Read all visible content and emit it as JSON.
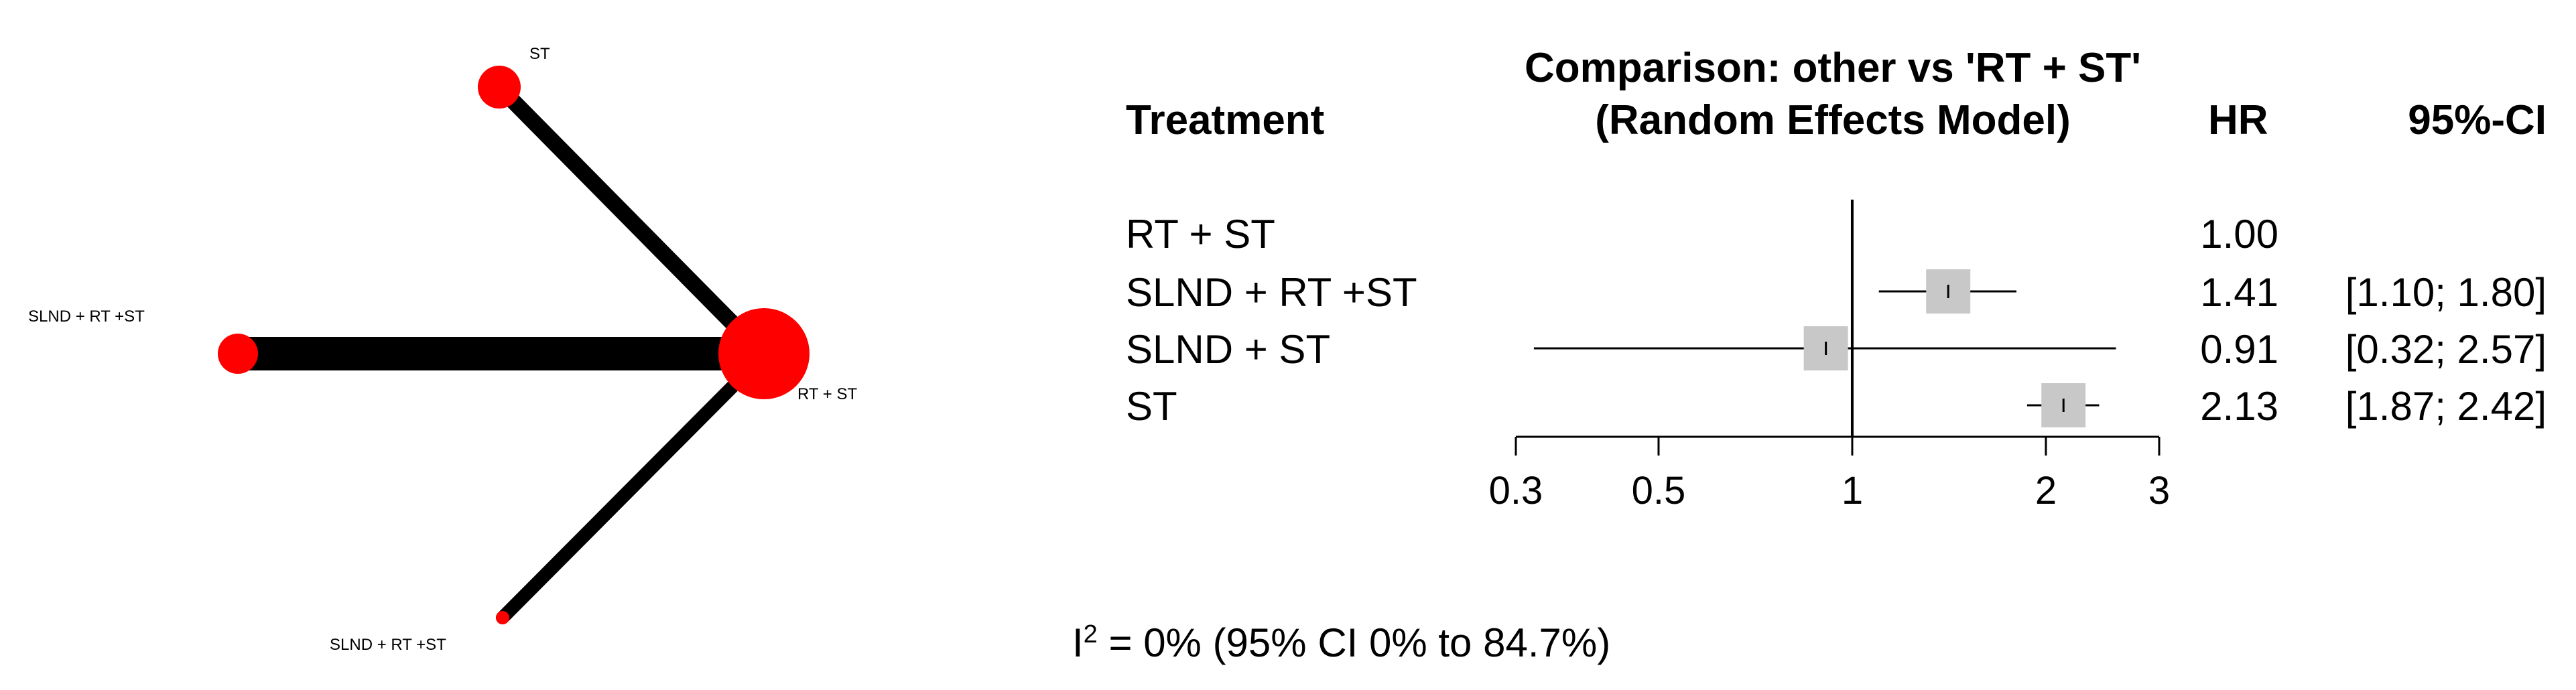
{
  "network": {
    "nodes": [
      {
        "id": "st",
        "label": "ST"
      },
      {
        "id": "slnd_rt_st_left",
        "label": "SLND + RT +ST"
      },
      {
        "id": "rt_st",
        "label": "RT + ST"
      },
      {
        "id": "slnd_rt_st_bottom",
        "label": "SLND + RT +ST"
      }
    ],
    "node_color": "#ff0000",
    "edge_color": "#000000"
  },
  "chart_data": {
    "type": "forest",
    "title_line1": "Comparison: other vs 'RT + ST'",
    "title_line2": "(Random Effects Model)",
    "col_treatment": "Treatment",
    "col_hr": "HR",
    "col_ci": "95%-CI",
    "scale": "log",
    "xlim": [
      0.3,
      3
    ],
    "reference": 1,
    "ticks": [
      0.3,
      0.5,
      1,
      2,
      3
    ],
    "tick_labels": [
      "0.3",
      "0.5",
      "1",
      "2",
      "3"
    ],
    "rows": [
      {
        "treatment": "RT + ST",
        "hr": 1.0,
        "lower": null,
        "upper": null,
        "hr_text": "1.00",
        "ci_text": ""
      },
      {
        "treatment": "SLND + RT +ST",
        "hr": 1.41,
        "lower": 1.1,
        "upper": 1.8,
        "hr_text": "1.41",
        "ci_text": "[1.10; 1.80]"
      },
      {
        "treatment": "SLND + ST",
        "hr": 0.91,
        "lower": 0.32,
        "upper": 2.57,
        "hr_text": "0.91",
        "ci_text": "[0.32; 2.57]"
      },
      {
        "treatment": "ST",
        "hr": 2.13,
        "lower": 1.87,
        "upper": 2.42,
        "hr_text": "2.13",
        "ci_text": "[1.87; 2.42]"
      }
    ],
    "box_color": "#c8c8c8"
  },
  "heterogeneity": {
    "i_label": "I",
    "i_sup": "2",
    "text": " = 0% (95% CI 0% to 84.7%)"
  }
}
